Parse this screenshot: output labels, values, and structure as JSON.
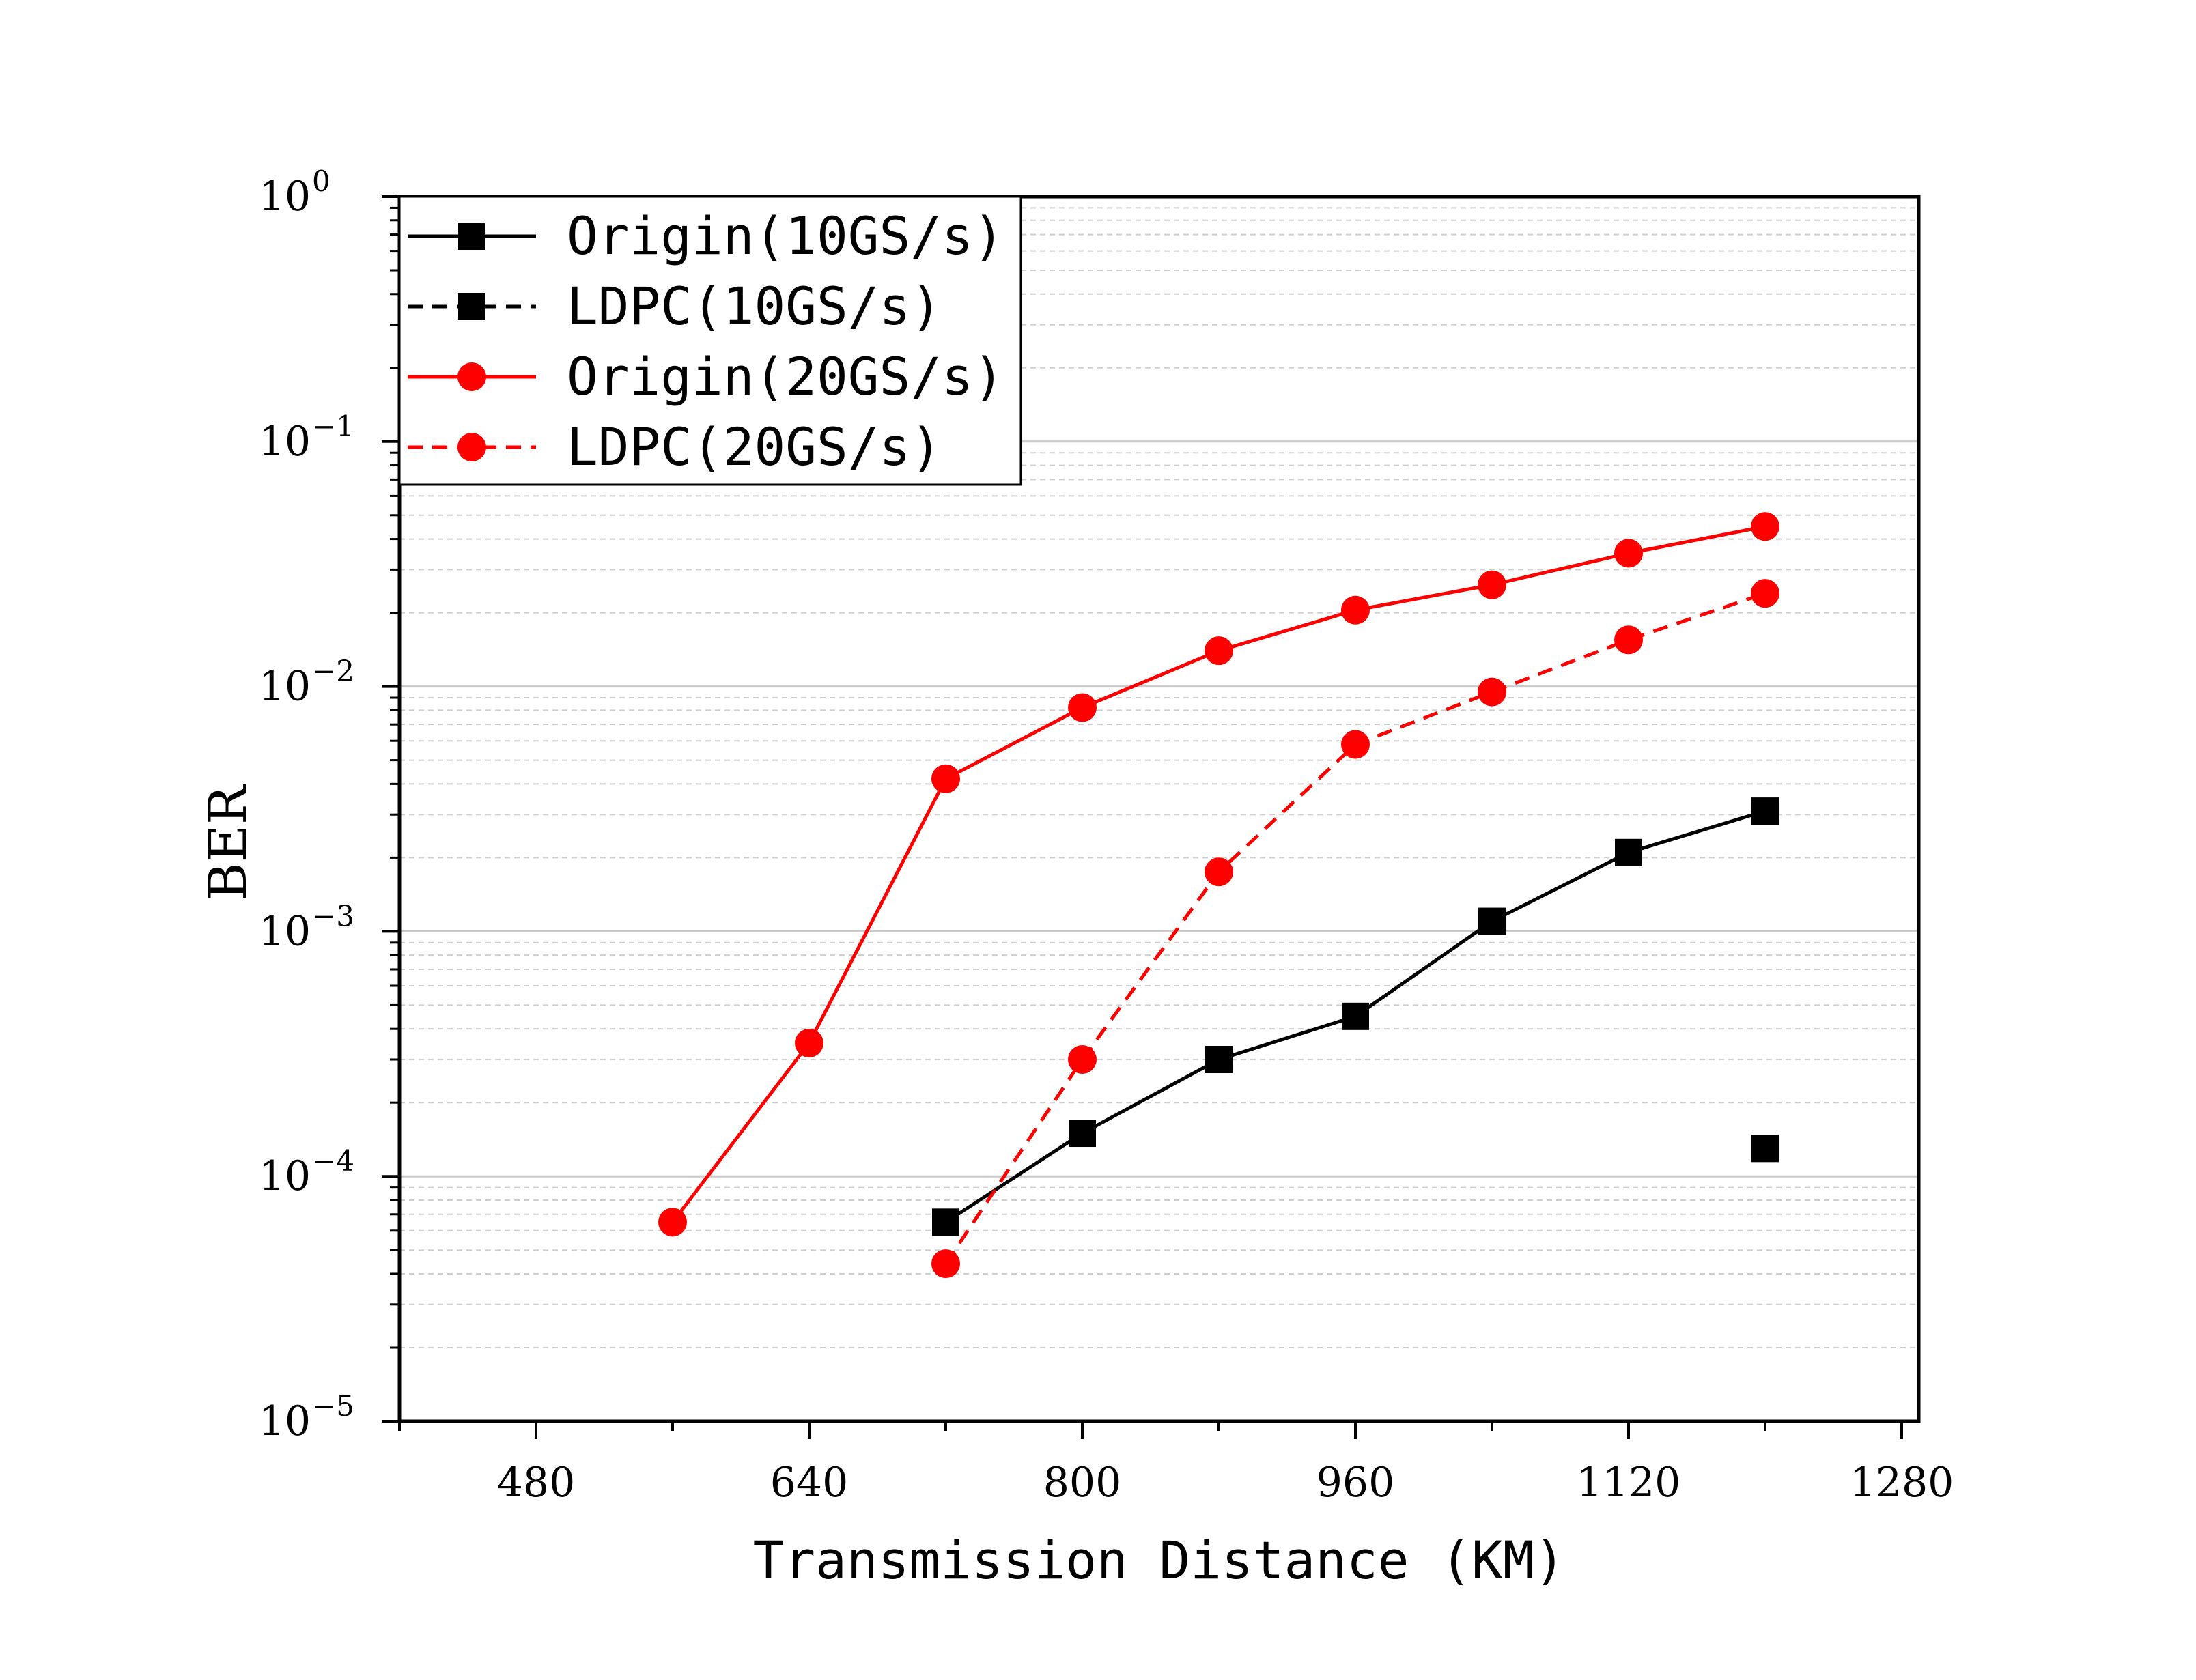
{
  "chart_data": {
    "type": "line",
    "xlabel": "Transmission Distance (KM)",
    "ylabel": "BER",
    "x_scale": "linear",
    "y_scale": "log",
    "xlim": [
      400,
      1290
    ],
    "ylim": [
      1e-05,
      1
    ],
    "x_ticks": [
      480,
      640,
      800,
      960,
      1120,
      1280
    ],
    "y_ticks": [
      {
        "value": 1,
        "base": "10",
        "exp": "0"
      },
      {
        "value": 0.1,
        "base": "10",
        "exp": "−1"
      },
      {
        "value": 0.01,
        "base": "10",
        "exp": "−2"
      },
      {
        "value": 0.001,
        "base": "10",
        "exp": "−3"
      },
      {
        "value": 0.0001,
        "base": "10",
        "exp": "−4"
      },
      {
        "value": 1e-05,
        "base": "10",
        "exp": "−5"
      }
    ],
    "grid": {
      "major_y": true,
      "minor_y": true
    },
    "legend_position": "top-left",
    "series": [
      {
        "name": "Origin(10GS/s)",
        "color": "#000000",
        "marker": "square",
        "line": "solid",
        "x": [
          720,
          800,
          880,
          960,
          1040,
          1120,
          1200
        ],
        "y": [
          6.5e-05,
          0.00015,
          0.0003,
          0.00045,
          0.0011,
          0.0021,
          0.0031
        ]
      },
      {
        "name": "LDPC(10GS/s)",
        "color": "#000000",
        "marker": "square",
        "line": "dashed",
        "x": [
          1200
        ],
        "y": [
          0.00013
        ]
      },
      {
        "name": "Origin(20GS/s)",
        "color": "#ff0000",
        "marker": "circle",
        "line": "solid",
        "x": [
          560,
          640,
          720,
          800,
          880,
          960,
          1040,
          1120,
          1200
        ],
        "y": [
          6.5e-05,
          0.00035,
          0.0042,
          0.0082,
          0.014,
          0.0205,
          0.026,
          0.035,
          0.045
        ]
      },
      {
        "name": "LDPC(20GS/s)",
        "color": "#ff0000",
        "marker": "circle",
        "line": "dashed",
        "x": [
          720,
          800,
          880,
          960,
          1040,
          1120,
          1200
        ],
        "y": [
          4.4e-05,
          0.0003,
          0.00175,
          0.0058,
          0.0095,
          0.0155,
          0.024
        ]
      }
    ]
  }
}
